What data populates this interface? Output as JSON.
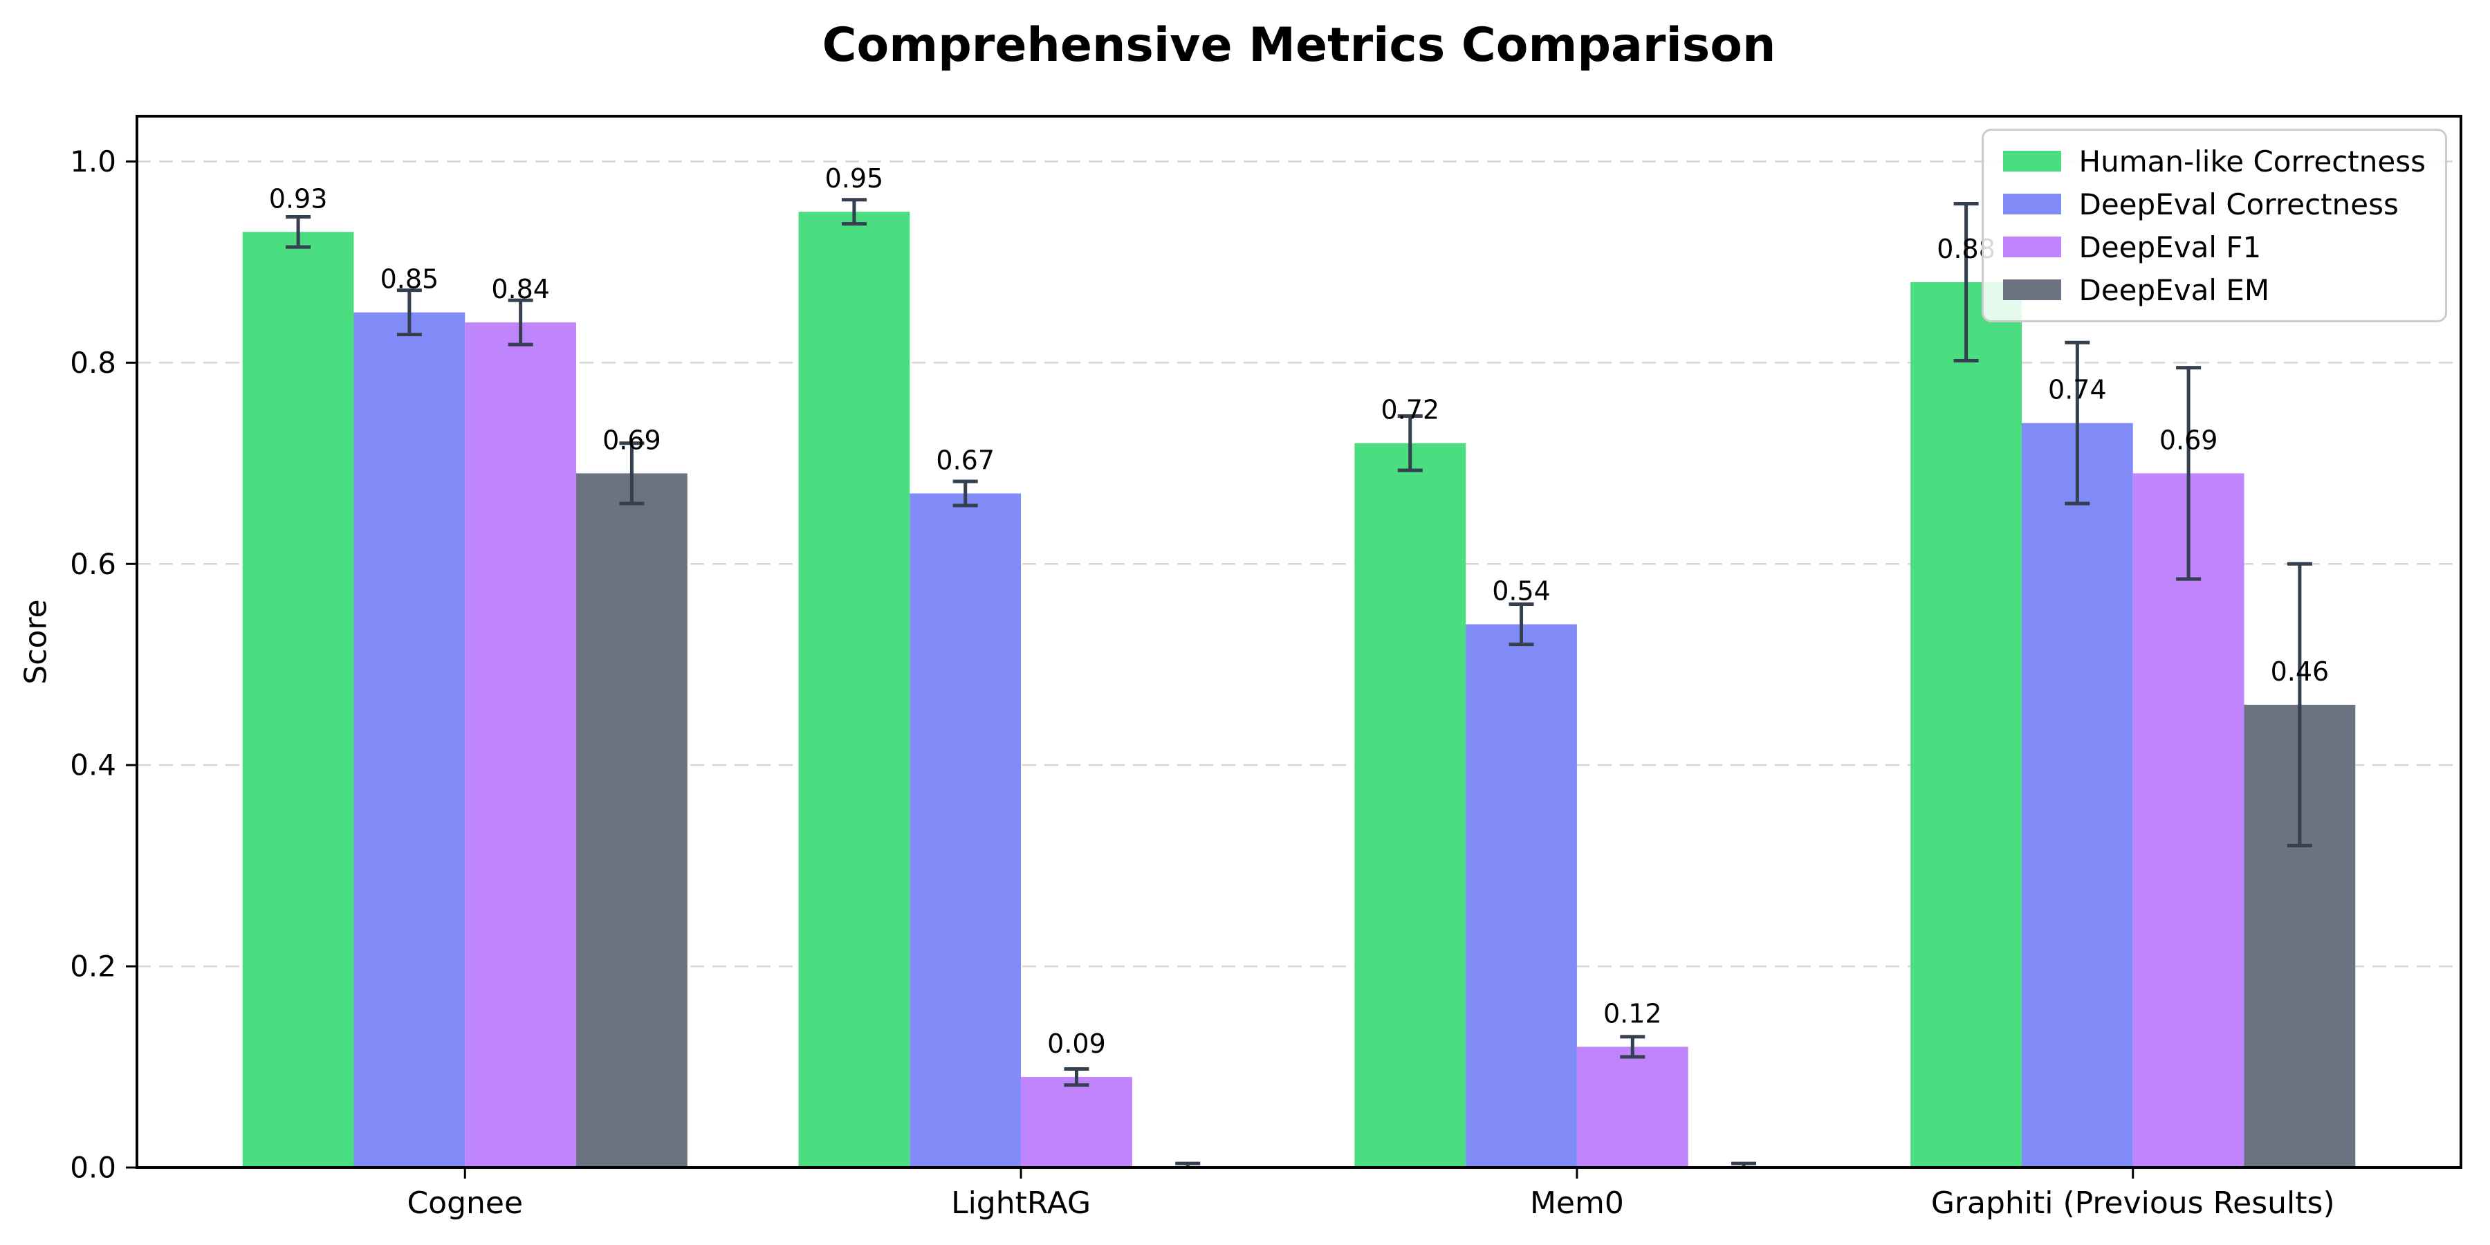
{
  "chart_data": {
    "type": "bar",
    "title": "Comprehensive Metrics Comparison",
    "ylabel": "Score",
    "xlabel": "",
    "categories": [
      "Cognee",
      "LightRAG",
      "Mem0",
      "Graphiti (Previous Results)"
    ],
    "ylim": [
      0,
      1.045
    ],
    "yticks": [
      0.0,
      0.2,
      0.4,
      0.6,
      0.8,
      1.0
    ],
    "ytick_labels": [
      "0.0",
      "0.2",
      "0.4",
      "0.6",
      "0.8",
      "1.0"
    ],
    "grid": "horizontal-dashed",
    "legend_position": "upper-right",
    "error_bar_color": "#343f4f",
    "series": [
      {
        "name": "Human-like Correctness",
        "color": "#4ade80",
        "values": [
          0.93,
          0.95,
          0.72,
          0.88
        ],
        "errors": [
          0.015,
          0.012,
          0.027,
          0.078
        ],
        "labels": [
          "0.93",
          "0.95",
          "0.72",
          "0.88"
        ]
      },
      {
        "name": "DeepEval Correctness",
        "color": "#818cf8",
        "values": [
          0.85,
          0.67,
          0.54,
          0.74
        ],
        "errors": [
          0.022,
          0.012,
          0.02,
          0.08
        ],
        "labels": [
          "0.85",
          "0.67",
          "0.54",
          "0.74"
        ]
      },
      {
        "name": "DeepEval F1",
        "color": "#c084fc",
        "values": [
          0.84,
          0.09,
          0.12,
          0.69
        ],
        "errors": [
          0.022,
          0.008,
          0.01,
          0.105
        ],
        "labels": [
          "0.84",
          "0.09",
          "0.12",
          "0.69"
        ]
      },
      {
        "name": "DeepEval EM",
        "color": "#6b7280",
        "values": [
          0.69,
          0.0,
          0.0,
          0.46
        ],
        "errors": [
          0.03,
          0.004,
          0.004,
          0.14
        ],
        "labels": [
          "0.69",
          "",
          "",
          "0.46"
        ]
      }
    ]
  }
}
